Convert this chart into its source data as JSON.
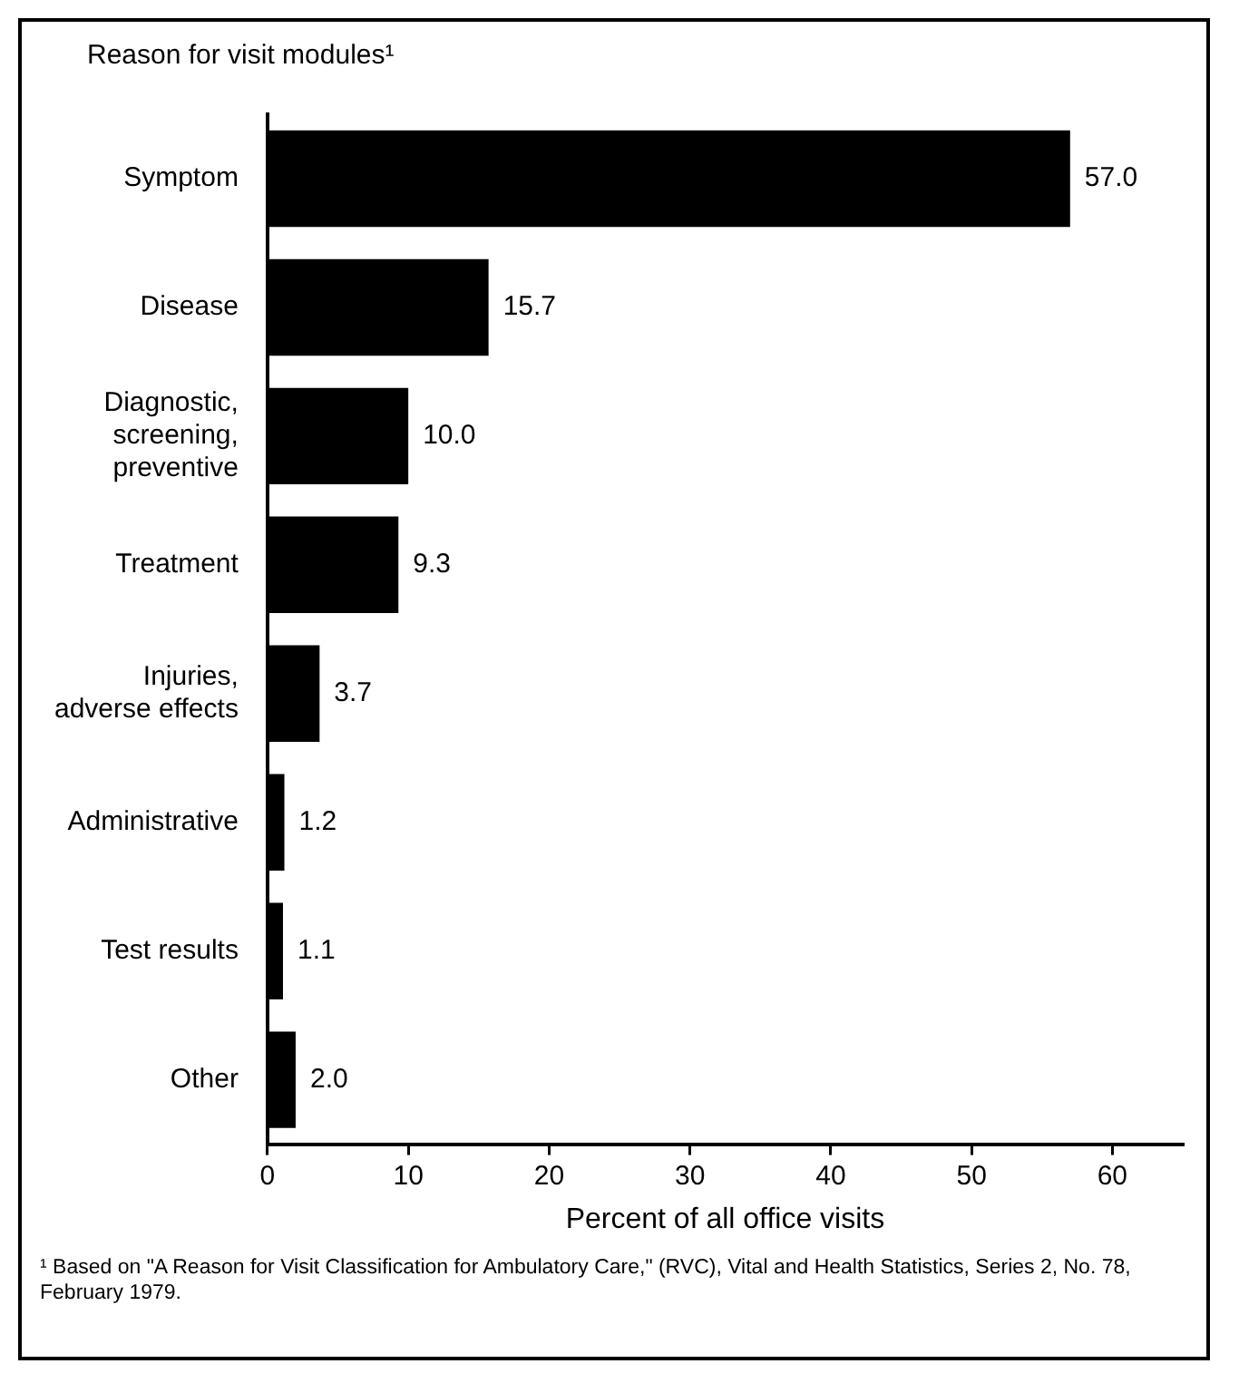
{
  "chart_data": {
    "type": "bar",
    "orientation": "horizontal",
    "ylabel": "Reason for visit modules¹",
    "xlabel": "Percent of all office visits",
    "categories": [
      "Symptom",
      "Disease",
      "Diagnostic, screening, preventive",
      "Treatment",
      "Injuries, adverse effects",
      "Administrative",
      "Test results",
      "Other"
    ],
    "values": [
      57.0,
      15.7,
      10.0,
      9.3,
      3.7,
      1.2,
      1.1,
      2.0
    ],
    "value_labels": [
      "57.0",
      "15.7",
      "10.0",
      "9.3",
      "3.7",
      "1.2",
      "1.1",
      "2.0"
    ],
    "color": "#000000",
    "xlim": [
      0,
      65
    ],
    "xticks": [
      0,
      10,
      20,
      30,
      40,
      50,
      60
    ],
    "grid": false,
    "legend": false,
    "annotations": [
      "¹ Based on \"A Reason for Visit Classification for Ambulatory Care,\" (RVC), Vital and Health Statistics, Series 2, No. 78, February 1979."
    ]
  }
}
